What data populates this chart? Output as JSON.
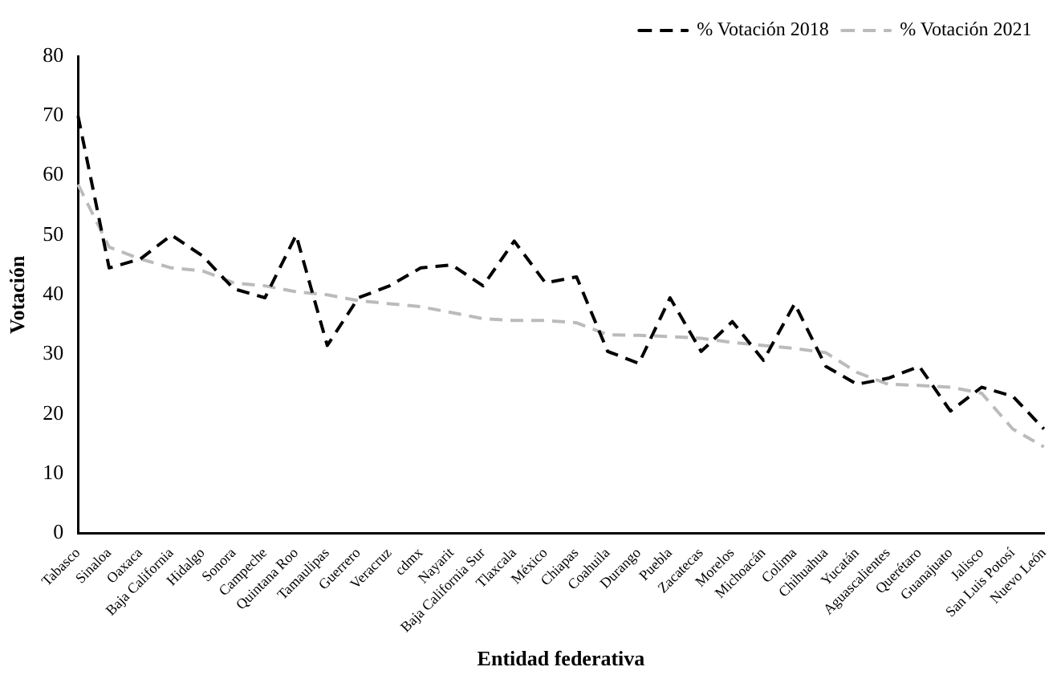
{
  "chart_data": {
    "type": "line",
    "xlabel": "Entidad federativa",
    "ylabel": "Votación",
    "categories": [
      "Tabasco",
      "Sinaloa",
      "Oaxaca",
      "Baja California",
      "Hidalgo",
      "Sonora",
      "Campeche",
      "Quintana Roo",
      "Tamaulipas",
      "Guerrero",
      "Veracruz",
      "cdmx",
      "Nayarit",
      "Baja California Sur",
      "Tlaxcala",
      "México",
      "Chiapas",
      "Coahuila",
      "Durango",
      "Puebla",
      "Zacatecas",
      "Morelos",
      "Michoacán",
      "Colima",
      "Chihuahua",
      "Yucatán",
      "Aguascalientes",
      "Querétaro",
      "Guanajuato",
      "Jalisco",
      "San Luis Potosí",
      "Nuevo León"
    ],
    "series": [
      {
        "name": "% Votación 2018",
        "color": "#000000",
        "values": [
          70,
          44.5,
          46,
          50,
          46.5,
          41,
          39.5,
          50,
          31.5,
          39.5,
          41.5,
          44.5,
          45,
          41.5,
          49,
          42,
          43,
          30.5,
          28.5,
          39.5,
          30.5,
          35.5,
          29,
          38.5,
          28,
          25,
          26,
          28,
          20.5,
          24.5,
          23,
          17.5
        ]
      },
      {
        "name": "% Votación 2021",
        "color": "#bbbbbb",
        "values": [
          58.5,
          48,
          46,
          44.5,
          44,
          42,
          41.5,
          40.5,
          40,
          39,
          38.5,
          38,
          37,
          36,
          35.7,
          35.7,
          35.3,
          33.3,
          33.2,
          33,
          32.7,
          32,
          31.5,
          31,
          30.3,
          27,
          25,
          24.8,
          24.5,
          23.5,
          17.5,
          14.5
        ]
      }
    ],
    "ylim": [
      0,
      80
    ],
    "yticks": [
      0,
      10,
      20,
      30,
      40,
      50,
      60,
      70,
      80
    ],
    "grid": false,
    "legend": "top right",
    "marker": "none",
    "line_style": "dashed"
  }
}
